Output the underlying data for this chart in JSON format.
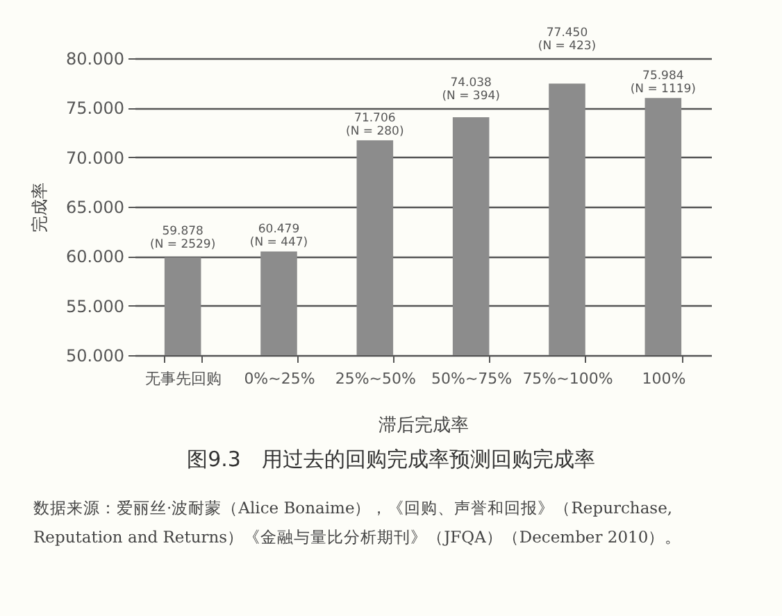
{
  "chart_data": {
    "type": "bar",
    "title": "图9.3　用过去的回购完成率预测回购完成率",
    "xlabel": "滞后完成率",
    "ylabel": "完成率",
    "categories": [
      "无事先回购",
      "0%~25%",
      "25%~50%",
      "50%~75%",
      "75%~100%",
      "100%"
    ],
    "values": [
      59.878,
      60.479,
      71.706,
      74.038,
      77.45,
      75.984
    ],
    "value_labels": [
      "59.878\n(N = 2529)",
      "60.479\n(N = 447)",
      "71.706\n(N = 280)",
      "74.038\n(N = 394)",
      "77.450\n(N = 423)",
      "75.984\n(N = 1119)"
    ],
    "color": "#8c8c8c",
    "ylim": [
      50,
      80
    ],
    "yticks": [
      {
        "value": 50,
        "label": "50.000"
      },
      {
        "value": 55,
        "label": "55.000"
      },
      {
        "value": 60,
        "label": "60.000"
      },
      {
        "value": 65,
        "label": "65.000"
      },
      {
        "value": 70,
        "label": "70.000"
      },
      {
        "value": 75,
        "label": "75.000"
      },
      {
        "value": 80,
        "label": "80.000"
      }
    ],
    "grid": "y",
    "annotations": [
      "数据来源：爱丽丝·波耐蒙（Alice Bonaime），《回购、声誉和回报》（Repurchase, Reputation and Returns）《金融与量比分析期刊》（JFQA）（December 2010）。"
    ]
  }
}
